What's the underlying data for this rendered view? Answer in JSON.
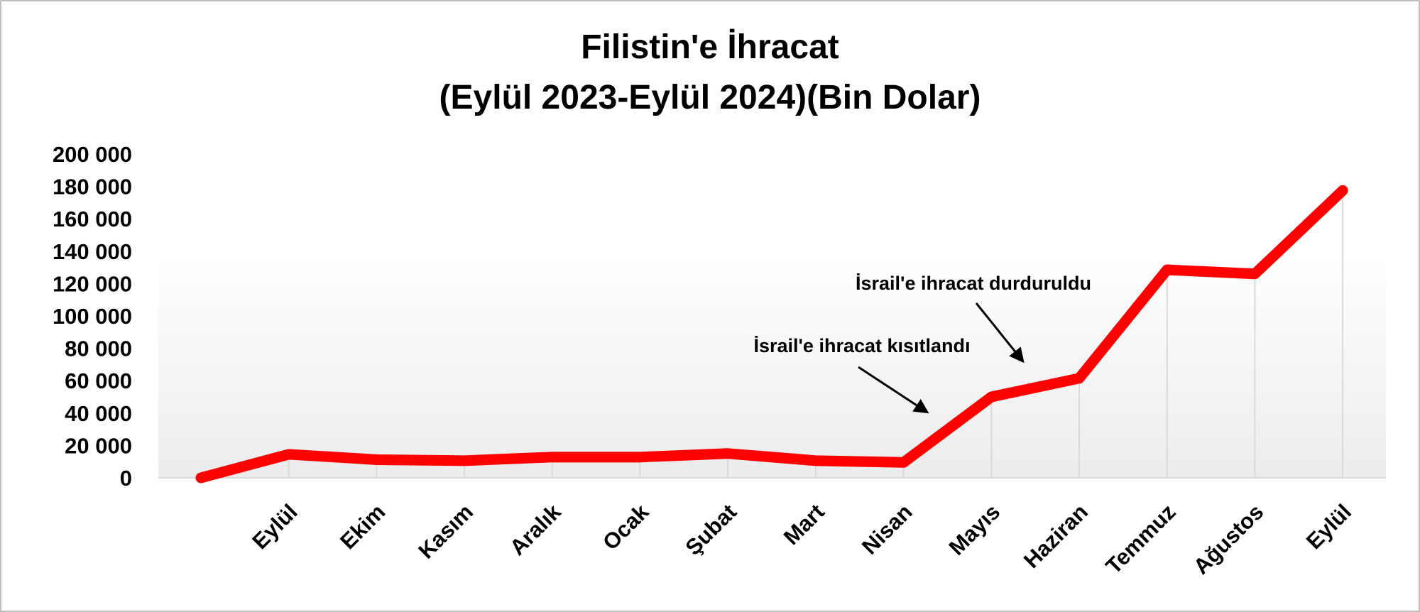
{
  "chart_data": {
    "type": "line",
    "title": [
      "Filistin'e İhracat",
      "(Eylül 2023-Eylül 2024)(Bin Dolar)"
    ],
    "categories": [
      null,
      "Eylül",
      "Ekim",
      "Kasım",
      "Aralık",
      "Ocak",
      "Şubat",
      "Mart",
      "Nisan",
      "Mayıs",
      "Haziran",
      "Temmuz",
      "Ağustos",
      "Eylül"
    ],
    "series": [
      {
        "color": "#ff0000",
        "values": [
          0,
          14500,
          11200,
          10600,
          12800,
          12800,
          15000,
          10600,
          9500,
          50000,
          61500,
          128500,
          126000,
          177500
        ]
      }
    ],
    "ylim": [
      0,
      200000
    ],
    "yticks": [
      {
        "value": 0,
        "label": "0"
      },
      {
        "value": 20000,
        "label": "20 000"
      },
      {
        "value": 40000,
        "label": "40 000"
      },
      {
        "value": 60000,
        "label": "60 000"
      },
      {
        "value": 80000,
        "label": "80 000"
      },
      {
        "value": 100000,
        "label": "100 000"
      },
      {
        "value": 120000,
        "label": "120 000"
      },
      {
        "value": 140000,
        "label": "140 000"
      },
      {
        "value": 160000,
        "label": "160 000"
      },
      {
        "value": 180000,
        "label": "180 000"
      },
      {
        "value": 200000,
        "label": "200 000"
      }
    ],
    "annotations": [
      "İsrail'e ihracat kısıtlandı",
      "İsrail'e ihracat durduruldu"
    ]
  }
}
